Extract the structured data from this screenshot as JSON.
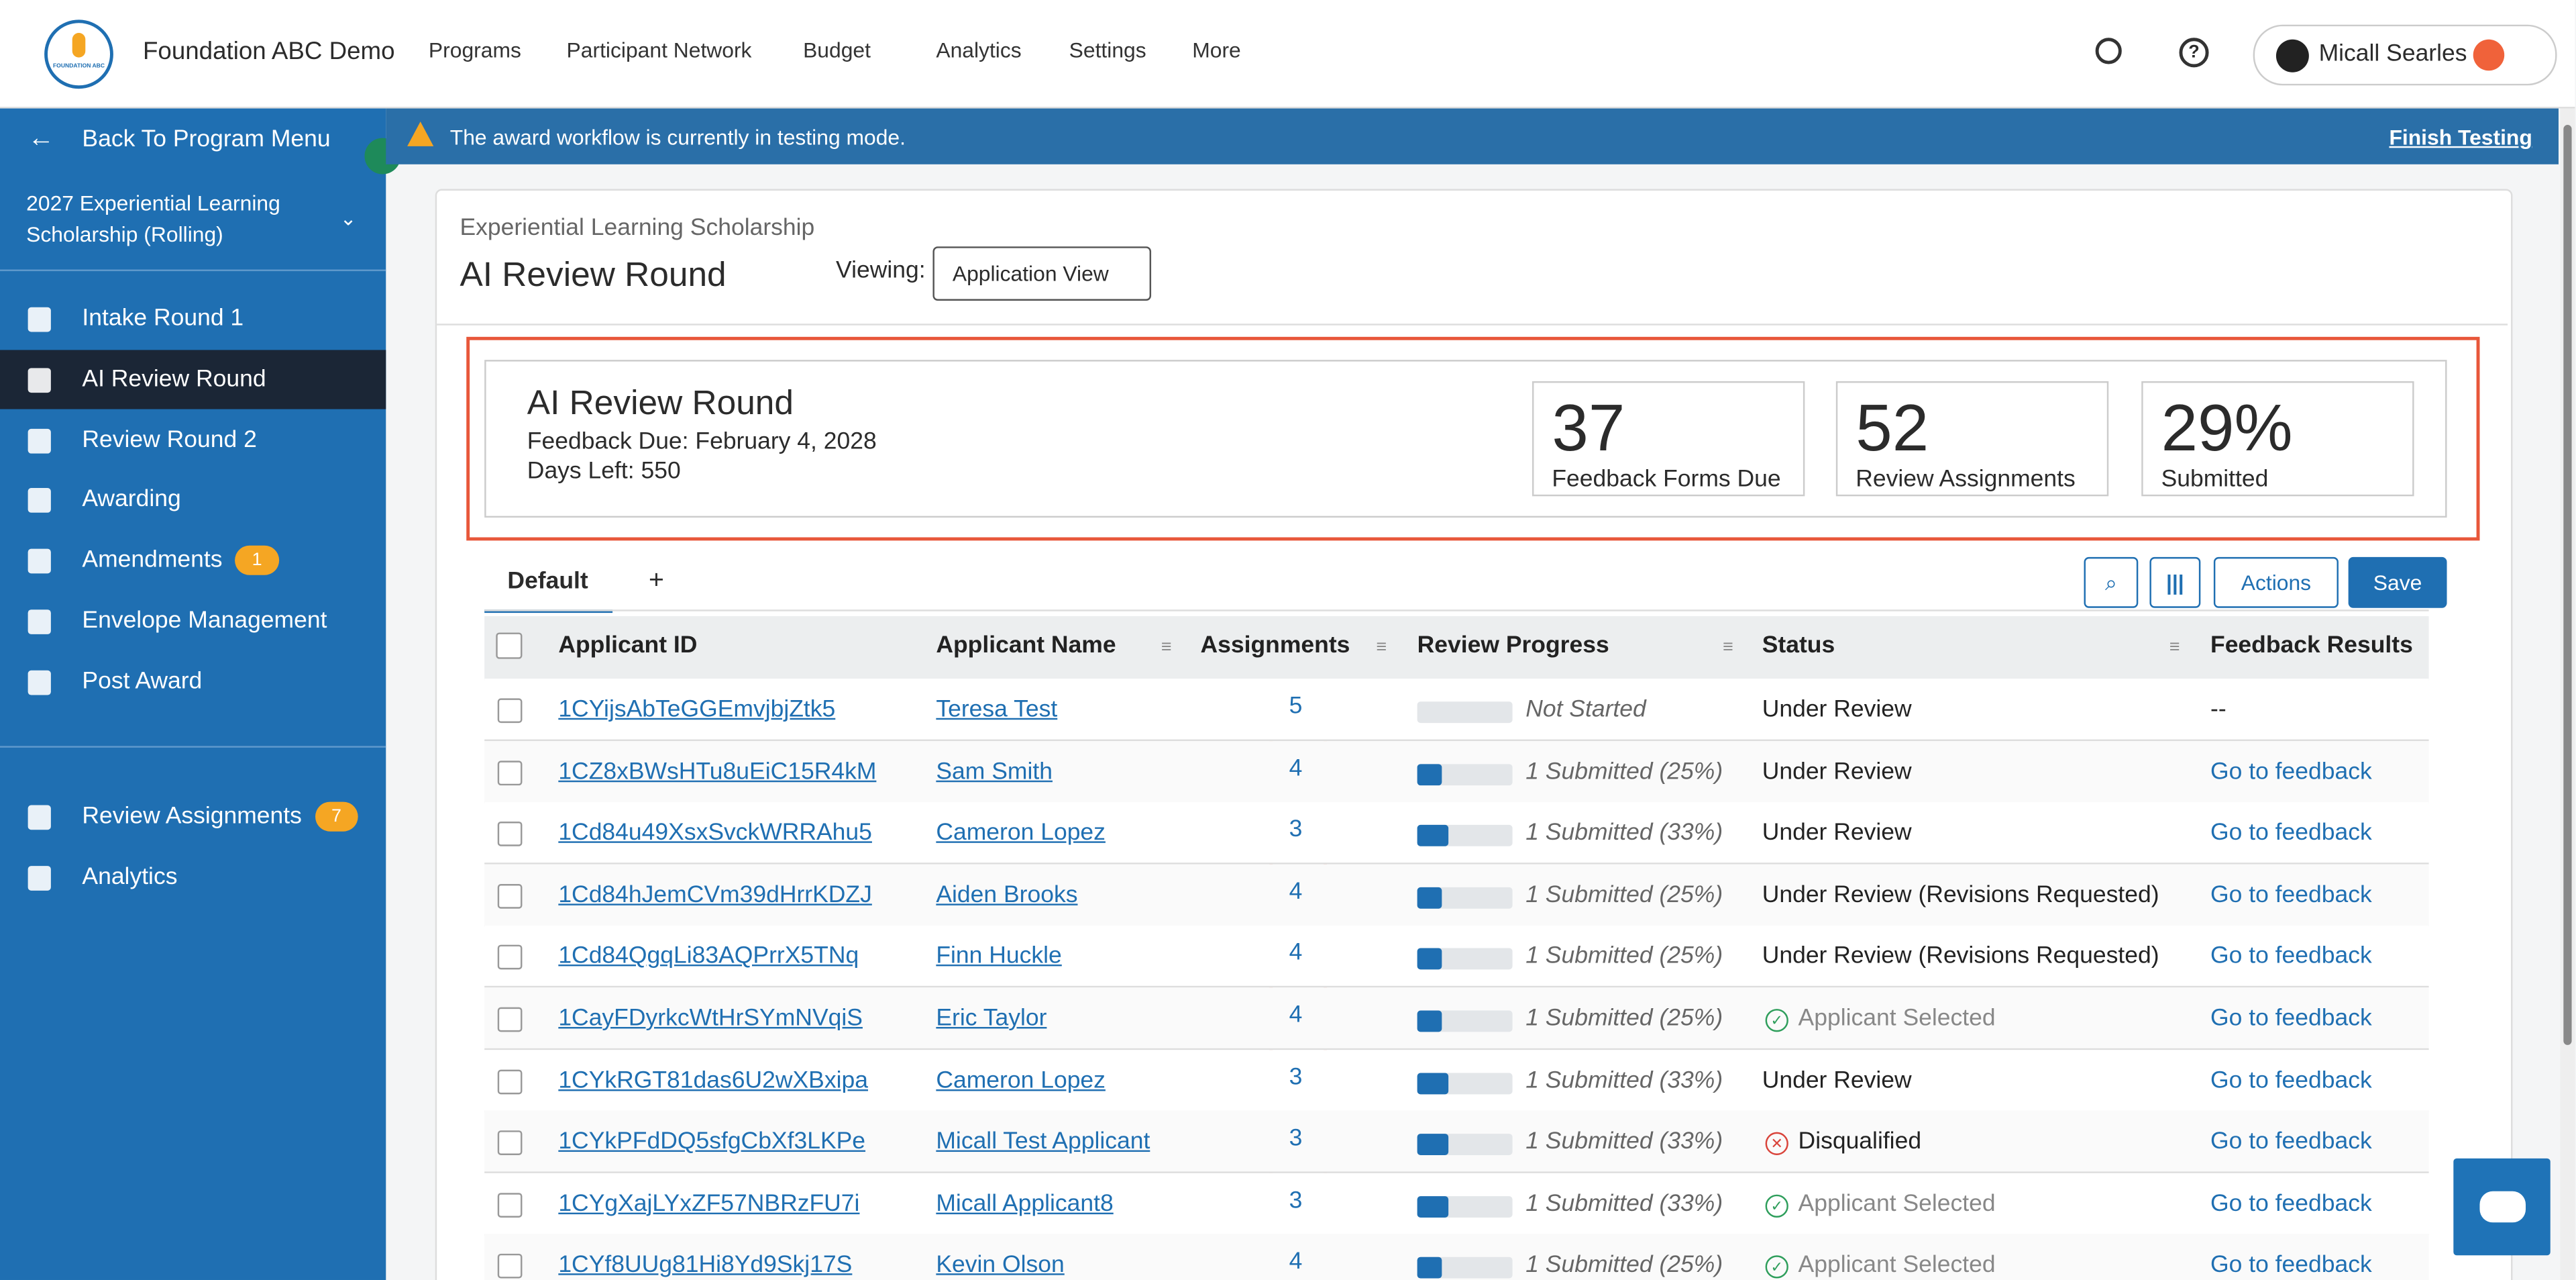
{
  "header": {
    "logo_text": "FOUNDATION ABC",
    "org_name": "Foundation ABC Demo",
    "nav": [
      "Programs",
      "Participant Network",
      "Budget",
      "Analytics",
      "Settings",
      "More"
    ],
    "user": "Micall Searles"
  },
  "sidebar": {
    "back": "Back To Program Menu",
    "program": "2027 Experiential Learning Scholarship (Rolling)",
    "items": [
      {
        "label": "Intake Round 1"
      },
      {
        "label": "AI Review Round"
      },
      {
        "label": "Review Round 2"
      },
      {
        "label": "Awarding"
      },
      {
        "label": "Amendments",
        "badge": "1"
      },
      {
        "label": "Envelope Management"
      },
      {
        "label": "Post Award"
      }
    ],
    "bottom_items": [
      {
        "label": "Review Assignments",
        "badge": "7"
      },
      {
        "label": "Analytics"
      }
    ]
  },
  "banner": {
    "message": "The award workflow is currently in testing mode.",
    "action": "Finish Testing"
  },
  "page": {
    "breadcrumb": "Experiential Learning Scholarship",
    "title": "AI Review Round",
    "viewing_label": "Viewing:",
    "view_select": "Application View"
  },
  "summary": {
    "title": "AI Review Round",
    "feedback_due": "Feedback Due: February 4, 2028",
    "days_left": "Days Left: 550",
    "stats": [
      {
        "value": "37",
        "label": "Feedback Forms Due"
      },
      {
        "value": "52",
        "label": "Review Assignments"
      },
      {
        "value": "29%",
        "label": "Submitted"
      }
    ]
  },
  "tabs": [
    "Default",
    "+"
  ],
  "buttons": [
    "Actions",
    "Save"
  ],
  "table": {
    "columns": [
      "Applicant ID",
      "Applicant Name",
      "Assignments",
      "Review Progress",
      "Status",
      "Feedback Results"
    ],
    "rows": [
      {
        "id": "1CYijsAbTeGGEmvjbjZtk5",
        "name": "Teresa Test",
        "assignments": "5",
        "progress": "Not Started",
        "progress_percent": 0,
        "status": "Under Review",
        "feedback": "--"
      },
      {
        "id": "1CZ8xBWsHTu8uEiC15R4kM",
        "name": "Sam Smith",
        "assignments": "4",
        "progress": "1 Submitted (25%)",
        "progress_percent": 25,
        "status": "Under Review",
        "feedback": "Go to feedback"
      },
      {
        "id": "1Cd84u49XsxSvckWRRAhu5",
        "name": "Cameron Lopez",
        "assignments": "3",
        "progress": "1 Submitted (33%)",
        "progress_percent": 33,
        "status": "Under Review",
        "feedback": "Go to feedback"
      },
      {
        "id": "1Cd84hJemCVm39dHrrKDZJ",
        "name": "Aiden Brooks",
        "assignments": "4",
        "progress": "1 Submitted (25%)",
        "progress_percent": 25,
        "status": "Under Review (Revisions Requested)",
        "feedback": "Go to feedback"
      },
      {
        "id": "1Cd84QgqLi83AQPrrX5TNq",
        "name": "Finn Huckle",
        "assignments": "4",
        "progress": "1 Submitted (25%)",
        "progress_percent": 25,
        "status": "Under Review (Revisions Requested)",
        "feedback": "Go to feedback"
      },
      {
        "id": "1CayFDyrkcWtHrSYmNVqiS",
        "name": "Eric Taylor",
        "assignments": "4",
        "progress": "1 Submitted (25%)",
        "progress_percent": 25,
        "status": "Applicant Selected",
        "status_icon": "check",
        "feedback": "Go to feedback"
      },
      {
        "id": "1CYkRGT81das6U2wXBxipa",
        "name": "Cameron Lopez",
        "assignments": "3",
        "progress": "1 Submitted (33%)",
        "progress_percent": 33,
        "status": "Under Review",
        "feedback": "Go to feedback"
      },
      {
        "id": "1CYkPFdDQ5sfgCbXf3LKPe",
        "name": "Micall Test Applicant",
        "assignments": "3",
        "progress": "1 Submitted (33%)",
        "progress_percent": 33,
        "status": "Disqualified",
        "status_icon": "x",
        "feedback": "Go to feedback"
      },
      {
        "id": "1CYgXajLYxZF57NBRzFU7i",
        "name": "Micall Applicant8",
        "assignments": "3",
        "progress": "1 Submitted (33%)",
        "progress_percent": 33,
        "status": "Applicant Selected",
        "status_icon": "check",
        "feedback": "Go to feedback"
      },
      {
        "id": "1CYf8UUg81Hi8Yd9Skj17S",
        "name": "Kevin Olson",
        "assignments": "4",
        "progress": "1 Submitted (25%)",
        "progress_percent": 25,
        "status": "Applicant Selected",
        "status_icon": "check",
        "feedback": "Go to feedback"
      }
    ]
  }
}
